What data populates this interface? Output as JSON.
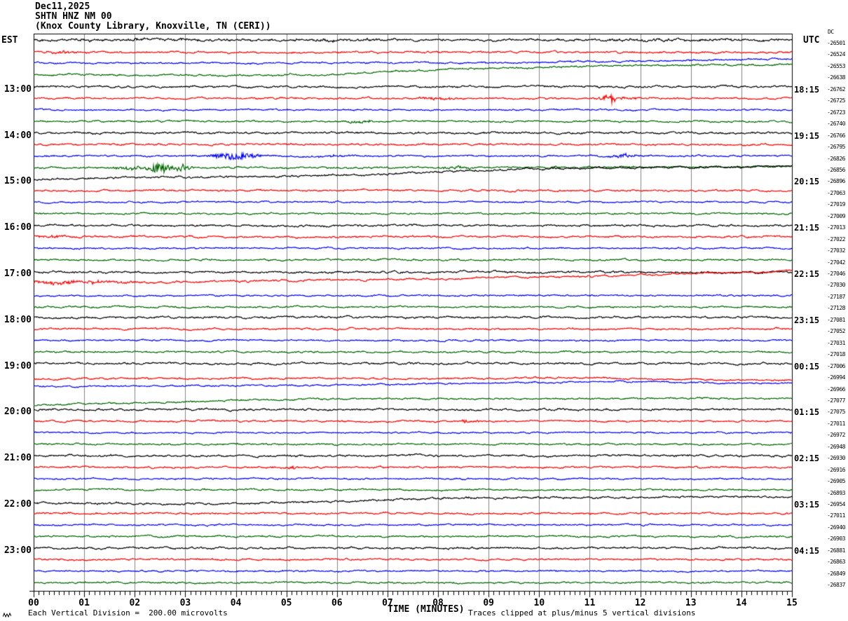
{
  "chart_data": {
    "type": "line",
    "subtype": "helicorder-seismogram",
    "title_lines": [
      "Dec11,2025",
      "SHTN HNZ NM 00",
      "(Knox County Library, Knoxville, TN (CERI))"
    ],
    "left_axis_label": "EST",
    "right_axis_label": "UTC",
    "dc_column_label": "DC",
    "xlabel": "TIME (MINUTES)",
    "x_tick_labels": [
      "00",
      "01",
      "02",
      "03",
      "04",
      "05",
      "06",
      "07",
      "08",
      "09",
      "10",
      "11",
      "12",
      "13",
      "14",
      "15"
    ],
    "x_range_minutes": [
      0,
      15
    ],
    "minutes_per_line": 15,
    "footer_left": "Each Vertical Division =  200.00 microvolts",
    "footer_right": "Traces clipped at plus/minus 5 vertical divisions",
    "grid": "vertical-gray-every-minute",
    "trace_colors": {
      "black": "#000000",
      "red": "#ff0000",
      "blue": "#0000ff",
      "green": "#006600"
    },
    "grid_color": "#848484",
    "rows": [
      {
        "est": "",
        "utc": "",
        "dc": "-26501",
        "color": "black",
        "noise": 0.95,
        "drift": [
          [
            0,
            -4
          ],
          [
            15,
            -4
          ]
        ],
        "events": [
          {
            "t": 2,
            "a": 1.0,
            "w": 1.6
          },
          {
            "t": 6,
            "a": 0.9,
            "w": 1.4
          },
          {
            "t": 12.5,
            "a": 1.0,
            "w": 1.8
          }
        ]
      },
      {
        "est": "",
        "utc": "",
        "dc": "-26524",
        "color": "red",
        "noise": 0.85,
        "drift": [
          [
            0,
            -3
          ],
          [
            15,
            -3
          ]
        ],
        "events": [
          {
            "t": 0.6,
            "a": 1.6,
            "w": 0.25
          }
        ]
      },
      {
        "est": "",
        "utc": "",
        "dc": "-26553",
        "color": "blue",
        "noise": 0.75,
        "drift": [
          [
            0,
            -4
          ],
          [
            7,
            -4.5
          ],
          [
            9.3,
            -4
          ],
          [
            10,
            -5.5
          ],
          [
            13,
            -8
          ],
          [
            15,
            -10
          ]
        ],
        "events": []
      },
      {
        "est": "",
        "utc": "",
        "dc": "-26638",
        "color": "green",
        "noise": 0.8,
        "drift": [
          [
            0,
            -4
          ],
          [
            2.5,
            -3
          ],
          [
            4.9,
            -2.5
          ],
          [
            5.1,
            -4.5
          ],
          [
            5.4,
            -3
          ],
          [
            7,
            -8
          ],
          [
            9,
            -13
          ],
          [
            11,
            -16
          ],
          [
            13,
            -17.5
          ],
          [
            15,
            -18
          ]
        ],
        "events": []
      },
      {
        "est": "13:00",
        "utc": "18:15",
        "dc": "-26762",
        "color": "black",
        "noise": 0.9,
        "drift": [
          [
            0,
            -3
          ],
          [
            15,
            -3
          ]
        ],
        "events": []
      },
      {
        "est": "",
        "utc": "",
        "dc": "-26725",
        "color": "red",
        "noise": 0.8,
        "drift": [
          [
            0,
            -3
          ],
          [
            15,
            -3
          ]
        ],
        "events": [
          {
            "t": 8.0,
            "a": 1.6,
            "w": 0.3
          },
          {
            "t": 11.4,
            "a": 5.5,
            "w": 0.12
          },
          {
            "t": 11.6,
            "a": 2.0,
            "w": 0.3
          }
        ]
      },
      {
        "est": "",
        "utc": "",
        "dc": "-26723",
        "color": "blue",
        "noise": 0.7,
        "drift": [
          [
            0,
            -3
          ],
          [
            15,
            -3
          ]
        ],
        "events": []
      },
      {
        "est": "",
        "utc": "",
        "dc": "-26740",
        "color": "green",
        "noise": 0.75,
        "drift": [
          [
            0,
            -3
          ],
          [
            15,
            -3
          ]
        ],
        "events": [
          {
            "t": 6.45,
            "a": 2.2,
            "w": 0.18
          }
        ]
      },
      {
        "est": "14:00",
        "utc": "19:15",
        "dc": "-26766",
        "color": "black",
        "noise": 0.9,
        "drift": [
          [
            0,
            -3
          ],
          [
            15,
            -3
          ]
        ],
        "events": []
      },
      {
        "est": "",
        "utc": "",
        "dc": "-26795",
        "color": "red",
        "noise": 0.85,
        "drift": [
          [
            0,
            -3
          ],
          [
            15,
            -3
          ]
        ],
        "events": []
      },
      {
        "est": "",
        "utc": "",
        "dc": "-26826",
        "color": "blue",
        "noise": 0.75,
        "drift": [
          [
            0,
            -3
          ],
          [
            15,
            -3
          ]
        ],
        "events": [
          {
            "t": 3.75,
            "a": 2.0,
            "w": 0.15
          },
          {
            "t": 4.0,
            "a": 4.5,
            "w": 0.35
          },
          {
            "t": 5.9,
            "a": 1.2,
            "w": 0.3
          },
          {
            "t": 11.65,
            "a": 1.8,
            "w": 0.25
          }
        ]
      },
      {
        "est": "",
        "utc": "",
        "dc": "-26856",
        "color": "green",
        "noise": 0.8,
        "drift": [
          [
            0,
            -2
          ],
          [
            8,
            -3
          ],
          [
            15,
            -4
          ]
        ],
        "events": [
          {
            "t": 2.0,
            "a": 2.0,
            "w": 0.3
          },
          {
            "t": 2.5,
            "a": 6.5,
            "w": 0.18
          },
          {
            "t": 2.95,
            "a": 5.0,
            "w": 0.12
          },
          {
            "t": 8.35,
            "a": 1.8,
            "w": 0.2
          }
        ]
      },
      {
        "est": "15:00",
        "utc": "20:15",
        "dc": "-26896",
        "color": "black",
        "noise": 0.9,
        "drift": [
          [
            0,
            -2.5
          ],
          [
            2,
            -5
          ],
          [
            4,
            -6
          ],
          [
            6,
            -8
          ],
          [
            8,
            -13
          ],
          [
            9.5,
            -17
          ],
          [
            12,
            -19.5
          ],
          [
            15,
            -21
          ]
        ],
        "events": []
      },
      {
        "est": "",
        "utc": "",
        "dc": "-27063",
        "color": "red",
        "noise": 0.8,
        "drift": [
          [
            0,
            -3
          ],
          [
            15,
            -3
          ]
        ],
        "events": []
      },
      {
        "est": "",
        "utc": "",
        "dc": "-27019",
        "color": "blue",
        "noise": 0.7,
        "drift": [
          [
            0,
            -3
          ],
          [
            15,
            -3
          ]
        ],
        "events": []
      },
      {
        "est": "",
        "utc": "",
        "dc": "-27009",
        "color": "green",
        "noise": 0.75,
        "drift": [
          [
            0,
            -3
          ],
          [
            15,
            -3
          ]
        ],
        "events": []
      },
      {
        "est": "16:00",
        "utc": "21:15",
        "dc": "-27013",
        "color": "black",
        "noise": 0.9,
        "drift": [
          [
            0,
            -2.5
          ],
          [
            15,
            -2.5
          ]
        ],
        "events": []
      },
      {
        "est": "",
        "utc": "",
        "dc": "-27022",
        "color": "red",
        "noise": 0.85,
        "drift": [
          [
            0,
            -3
          ],
          [
            15,
            -3
          ]
        ],
        "events": [
          {
            "t": 0.4,
            "a": 1.4,
            "w": 0.3
          }
        ]
      },
      {
        "est": "",
        "utc": "",
        "dc": "-27032",
        "color": "blue",
        "noise": 0.7,
        "drift": [
          [
            0,
            -3
          ],
          [
            15,
            -3
          ]
        ],
        "events": []
      },
      {
        "est": "",
        "utc": "",
        "dc": "-27042",
        "color": "green",
        "noise": 0.75,
        "drift": [
          [
            0,
            -3
          ],
          [
            15,
            -3
          ]
        ],
        "events": []
      },
      {
        "est": "17:00",
        "utc": "22:15",
        "dc": "-27046",
        "color": "black",
        "noise": 0.9,
        "drift": [
          [
            0,
            -2
          ],
          [
            15,
            -1.5
          ]
        ],
        "events": []
      },
      {
        "est": "",
        "utc": "",
        "dc": "-27030",
        "color": "red",
        "noise": 0.9,
        "drift": [
          [
            0,
            -2.5
          ],
          [
            3,
            -4
          ],
          [
            6,
            -7
          ],
          [
            9,
            -10
          ],
          [
            11,
            -12
          ],
          [
            13,
            -16
          ],
          [
            15,
            -19.5
          ]
        ],
        "events": [
          {
            "t": 0.5,
            "a": 1.8,
            "w": 0.6
          },
          {
            "t": 1.5,
            "a": 1.2,
            "w": 0.5
          }
        ]
      },
      {
        "est": "",
        "utc": "",
        "dc": "-27187",
        "color": "blue",
        "noise": 0.7,
        "drift": [
          [
            0,
            -1
          ],
          [
            15,
            -1.5
          ]
        ],
        "events": []
      },
      {
        "est": "",
        "utc": "",
        "dc": "-27128",
        "color": "green",
        "noise": 0.75,
        "drift": [
          [
            0,
            -1.5
          ],
          [
            15,
            -1.5
          ]
        ],
        "events": []
      },
      {
        "est": "18:00",
        "utc": "23:15",
        "dc": "-27081",
        "color": "black",
        "noise": 0.9,
        "drift": [
          [
            0,
            -3
          ],
          [
            15,
            -3
          ]
        ],
        "events": []
      },
      {
        "est": "",
        "utc": "",
        "dc": "-27052",
        "color": "red",
        "noise": 0.8,
        "drift": [
          [
            0,
            -3
          ],
          [
            15,
            -3
          ]
        ],
        "events": []
      },
      {
        "est": "",
        "utc": "",
        "dc": "-27031",
        "color": "blue",
        "noise": 0.7,
        "drift": [
          [
            0,
            -3
          ],
          [
            15,
            -3
          ]
        ],
        "events": []
      },
      {
        "est": "",
        "utc": "",
        "dc": "-27018",
        "color": "green",
        "noise": 0.75,
        "drift": [
          [
            0,
            -3
          ],
          [
            15,
            -3
          ]
        ],
        "events": []
      },
      {
        "est": "19:00",
        "utc": "00:15",
        "dc": "-27006",
        "color": "black",
        "noise": 0.9,
        "drift": [
          [
            0,
            -3
          ],
          [
            15,
            -3
          ]
        ],
        "events": []
      },
      {
        "est": "",
        "utc": "",
        "dc": "-26994",
        "color": "red",
        "noise": 0.8,
        "drift": [
          [
            0,
            2
          ],
          [
            9,
            2
          ],
          [
            10.5,
            0.5
          ],
          [
            12,
            2.5
          ],
          [
            13.5,
            4
          ],
          [
            15,
            4.5
          ]
        ],
        "events": []
      },
      {
        "est": "",
        "utc": "",
        "dc": "-26966",
        "color": "blue",
        "noise": 0.7,
        "drift": [
          [
            0,
            -3
          ],
          [
            6,
            -5
          ],
          [
            10,
            -9
          ],
          [
            11.5,
            -10
          ],
          [
            13,
            -8.5
          ],
          [
            15,
            -7.5
          ]
        ],
        "events": []
      },
      {
        "est": "",
        "utc": "",
        "dc": "-27077",
        "color": "green",
        "noise": 0.75,
        "drift": [
          [
            0,
            7
          ],
          [
            2,
            4
          ],
          [
            4,
            0
          ],
          [
            6,
            -2
          ],
          [
            15,
            -2.5
          ]
        ],
        "events": []
      },
      {
        "est": "20:00",
        "utc": "01:15",
        "dc": "-27075",
        "color": "black",
        "noise": 0.9,
        "drift": [
          [
            0,
            -3
          ],
          [
            15,
            -3
          ]
        ],
        "events": []
      },
      {
        "est": "",
        "utc": "",
        "dc": "-27011",
        "color": "red",
        "noise": 0.8,
        "drift": [
          [
            0,
            -3
          ],
          [
            15,
            -3
          ]
        ],
        "events": [
          {
            "t": 8.6,
            "a": 2.2,
            "w": 0.15
          }
        ]
      },
      {
        "est": "",
        "utc": "",
        "dc": "-26972",
        "color": "blue",
        "noise": 0.7,
        "drift": [
          [
            0,
            -3
          ],
          [
            15,
            -3
          ]
        ],
        "events": []
      },
      {
        "est": "",
        "utc": "",
        "dc": "-26948",
        "color": "green",
        "noise": 0.75,
        "drift": [
          [
            0,
            -3
          ],
          [
            15,
            -3
          ]
        ],
        "events": []
      },
      {
        "est": "21:00",
        "utc": "02:15",
        "dc": "-26930",
        "color": "black",
        "noise": 0.9,
        "drift": [
          [
            0,
            -3
          ],
          [
            15,
            -3
          ]
        ],
        "events": []
      },
      {
        "est": "",
        "utc": "",
        "dc": "-26916",
        "color": "red",
        "noise": 0.8,
        "drift": [
          [
            0,
            -3
          ],
          [
            15,
            -3
          ]
        ],
        "events": [
          {
            "t": 5.1,
            "a": 2.5,
            "w": 0.08
          }
        ]
      },
      {
        "est": "",
        "utc": "",
        "dc": "-26905",
        "color": "blue",
        "noise": 0.7,
        "drift": [
          [
            0,
            -3
          ],
          [
            15,
            -3
          ]
        ],
        "events": []
      },
      {
        "est": "",
        "utc": "",
        "dc": "-26893",
        "color": "green",
        "noise": 0.75,
        "drift": [
          [
            0,
            -3
          ],
          [
            1.6,
            -4.5
          ],
          [
            2.1,
            -3.5
          ],
          [
            3.5,
            -4
          ],
          [
            15,
            -3.5
          ]
        ],
        "events": []
      },
      {
        "est": "22:00",
        "utc": "03:15",
        "dc": "-26954",
        "color": "black",
        "noise": 0.9,
        "drift": [
          [
            0,
            -1
          ],
          [
            3,
            0
          ],
          [
            4.6,
            -1
          ],
          [
            6.5,
            -5
          ],
          [
            8,
            -8.5
          ],
          [
            10,
            -9
          ],
          [
            15,
            -10
          ]
        ],
        "events": []
      },
      {
        "est": "",
        "utc": "",
        "dc": "-27011",
        "color": "red",
        "noise": 0.8,
        "drift": [
          [
            0,
            -3
          ],
          [
            15,
            -3
          ]
        ],
        "events": []
      },
      {
        "est": "",
        "utc": "",
        "dc": "-26940",
        "color": "blue",
        "noise": 0.7,
        "drift": [
          [
            0,
            -3
          ],
          [
            15,
            -3
          ]
        ],
        "events": []
      },
      {
        "est": "",
        "utc": "",
        "dc": "-26903",
        "color": "green",
        "noise": 0.75,
        "drift": [
          [
            0,
            -3
          ],
          [
            15,
            -3
          ]
        ],
        "events": []
      },
      {
        "est": "23:00",
        "utc": "04:15",
        "dc": "-26881",
        "color": "black",
        "noise": 0.9,
        "drift": [
          [
            0,
            -3
          ],
          [
            15,
            -3
          ]
        ],
        "events": []
      },
      {
        "est": "",
        "utc": "",
        "dc": "-26863",
        "color": "red",
        "noise": 0.8,
        "drift": [
          [
            0,
            -3
          ],
          [
            15,
            -3
          ]
        ],
        "events": []
      },
      {
        "est": "",
        "utc": "",
        "dc": "-26849",
        "color": "blue",
        "noise": 0.7,
        "drift": [
          [
            0,
            -3
          ],
          [
            15,
            -3
          ]
        ],
        "events": []
      },
      {
        "est": "",
        "utc": "",
        "dc": "-26837",
        "color": "green",
        "noise": 0.75,
        "drift": [
          [
            0,
            -3
          ],
          [
            15,
            -3
          ]
        ],
        "events": []
      }
    ]
  }
}
